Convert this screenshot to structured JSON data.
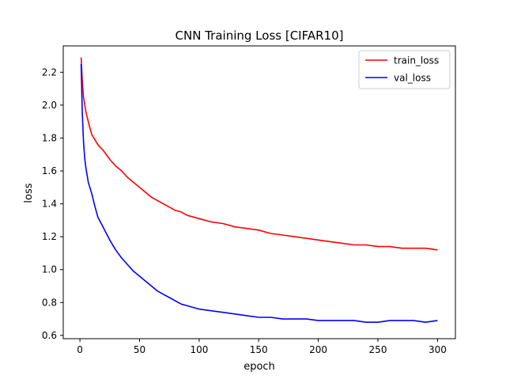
{
  "chart_data": {
    "type": "line",
    "title": "CNN Training Loss [CIFAR10]",
    "xlabel": "epoch",
    "ylabel": "loss",
    "xlim": [
      -14,
      315
    ],
    "ylim": [
      0.58,
      2.36
    ],
    "xticks": [
      0,
      50,
      100,
      150,
      200,
      250,
      300
    ],
    "yticks": [
      0.6,
      0.8,
      1.0,
      1.2,
      1.4,
      1.6,
      1.8,
      2.0,
      2.2
    ],
    "grid": false,
    "legend": {
      "position": "upper-right"
    },
    "series": [
      {
        "name": "train_loss",
        "color": "#ff0000",
        "points": [
          [
            1,
            2.29
          ],
          [
            2,
            2.15
          ],
          [
            3,
            2.05
          ],
          [
            5,
            1.96
          ],
          [
            8,
            1.87
          ],
          [
            10,
            1.82
          ],
          [
            15,
            1.76
          ],
          [
            20,
            1.72
          ],
          [
            25,
            1.67
          ],
          [
            30,
            1.63
          ],
          [
            35,
            1.6
          ],
          [
            40,
            1.56
          ],
          [
            45,
            1.53
          ],
          [
            50,
            1.5
          ],
          [
            55,
            1.47
          ],
          [
            60,
            1.44
          ],
          [
            65,
            1.42
          ],
          [
            70,
            1.4
          ],
          [
            75,
            1.38
          ],
          [
            80,
            1.36
          ],
          [
            85,
            1.35
          ],
          [
            90,
            1.33
          ],
          [
            95,
            1.32
          ],
          [
            100,
            1.31
          ],
          [
            110,
            1.29
          ],
          [
            120,
            1.28
          ],
          [
            130,
            1.26
          ],
          [
            140,
            1.25
          ],
          [
            150,
            1.24
          ],
          [
            160,
            1.22
          ],
          [
            170,
            1.21
          ],
          [
            180,
            1.2
          ],
          [
            190,
            1.19
          ],
          [
            200,
            1.18
          ],
          [
            210,
            1.17
          ],
          [
            220,
            1.16
          ],
          [
            230,
            1.15
          ],
          [
            240,
            1.15
          ],
          [
            250,
            1.14
          ],
          [
            260,
            1.14
          ],
          [
            270,
            1.13
          ],
          [
            280,
            1.13
          ],
          [
            290,
            1.13
          ],
          [
            300,
            1.12
          ]
        ]
      },
      {
        "name": "val_loss",
        "color": "#0000ff",
        "points": [
          [
            1,
            2.25
          ],
          [
            2,
            1.95
          ],
          [
            3,
            1.78
          ],
          [
            4,
            1.68
          ],
          [
            5,
            1.62
          ],
          [
            7,
            1.53
          ],
          [
            10,
            1.46
          ],
          [
            12,
            1.4
          ],
          [
            15,
            1.32
          ],
          [
            20,
            1.25
          ],
          [
            25,
            1.18
          ],
          [
            30,
            1.12
          ],
          [
            35,
            1.07
          ],
          [
            40,
            1.03
          ],
          [
            45,
            0.99
          ],
          [
            50,
            0.96
          ],
          [
            55,
            0.93
          ],
          [
            60,
            0.9
          ],
          [
            65,
            0.87
          ],
          [
            70,
            0.85
          ],
          [
            75,
            0.83
          ],
          [
            80,
            0.81
          ],
          [
            85,
            0.79
          ],
          [
            90,
            0.78
          ],
          [
            95,
            0.77
          ],
          [
            100,
            0.76
          ],
          [
            110,
            0.75
          ],
          [
            120,
            0.74
          ],
          [
            130,
            0.73
          ],
          [
            140,
            0.72
          ],
          [
            150,
            0.71
          ],
          [
            160,
            0.71
          ],
          [
            170,
            0.7
          ],
          [
            180,
            0.7
          ],
          [
            190,
            0.7
          ],
          [
            200,
            0.69
          ],
          [
            210,
            0.69
          ],
          [
            220,
            0.69
          ],
          [
            230,
            0.69
          ],
          [
            240,
            0.68
          ],
          [
            250,
            0.68
          ],
          [
            260,
            0.69
          ],
          [
            270,
            0.69
          ],
          [
            280,
            0.69
          ],
          [
            290,
            0.68
          ],
          [
            300,
            0.69
          ]
        ]
      }
    ]
  }
}
